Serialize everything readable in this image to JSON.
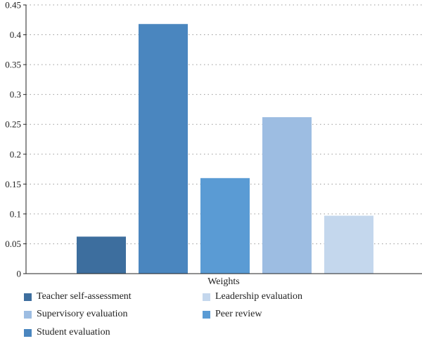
{
  "chart_data": {
    "type": "bar",
    "categories": [
      "Teacher self-assessment",
      "Student evaluation",
      "Peer review",
      "Supervisory evaluation",
      "Leadership evaluation"
    ],
    "values": [
      0.062,
      0.418,
      0.16,
      0.262,
      0.097
    ],
    "colors": [
      "#3d6e9e",
      "#4a86bf",
      "#5a9bd4",
      "#9dbde2",
      "#c4d7ed"
    ],
    "xlabel": "Weights",
    "ylabel": "",
    "ylim": [
      0,
      0.45
    ],
    "yticks": [
      0,
      0.05,
      0.1,
      0.15,
      0.2,
      0.25,
      0.3,
      0.35,
      0.4,
      0.45
    ],
    "ytick_labels": [
      "0",
      "0.05",
      "0.1",
      "0.15",
      "0.2",
      "0.25",
      "0.3",
      "0.35",
      "0.4",
      "0.45"
    ],
    "grid": "horizontal dotted",
    "legend": {
      "placement": "bottom",
      "entries": [
        {
          "label": "Teacher self-assessment",
          "color": "#3d6e9e"
        },
        {
          "label": "Leadership evaluation",
          "color": "#c4d7ed"
        },
        {
          "label": "Supervisory evaluation",
          "color": "#9dbde2"
        },
        {
          "label": "Peer review",
          "color": "#5a9bd4"
        },
        {
          "label": "Student evaluation",
          "color": "#4a86bf"
        }
      ]
    }
  }
}
